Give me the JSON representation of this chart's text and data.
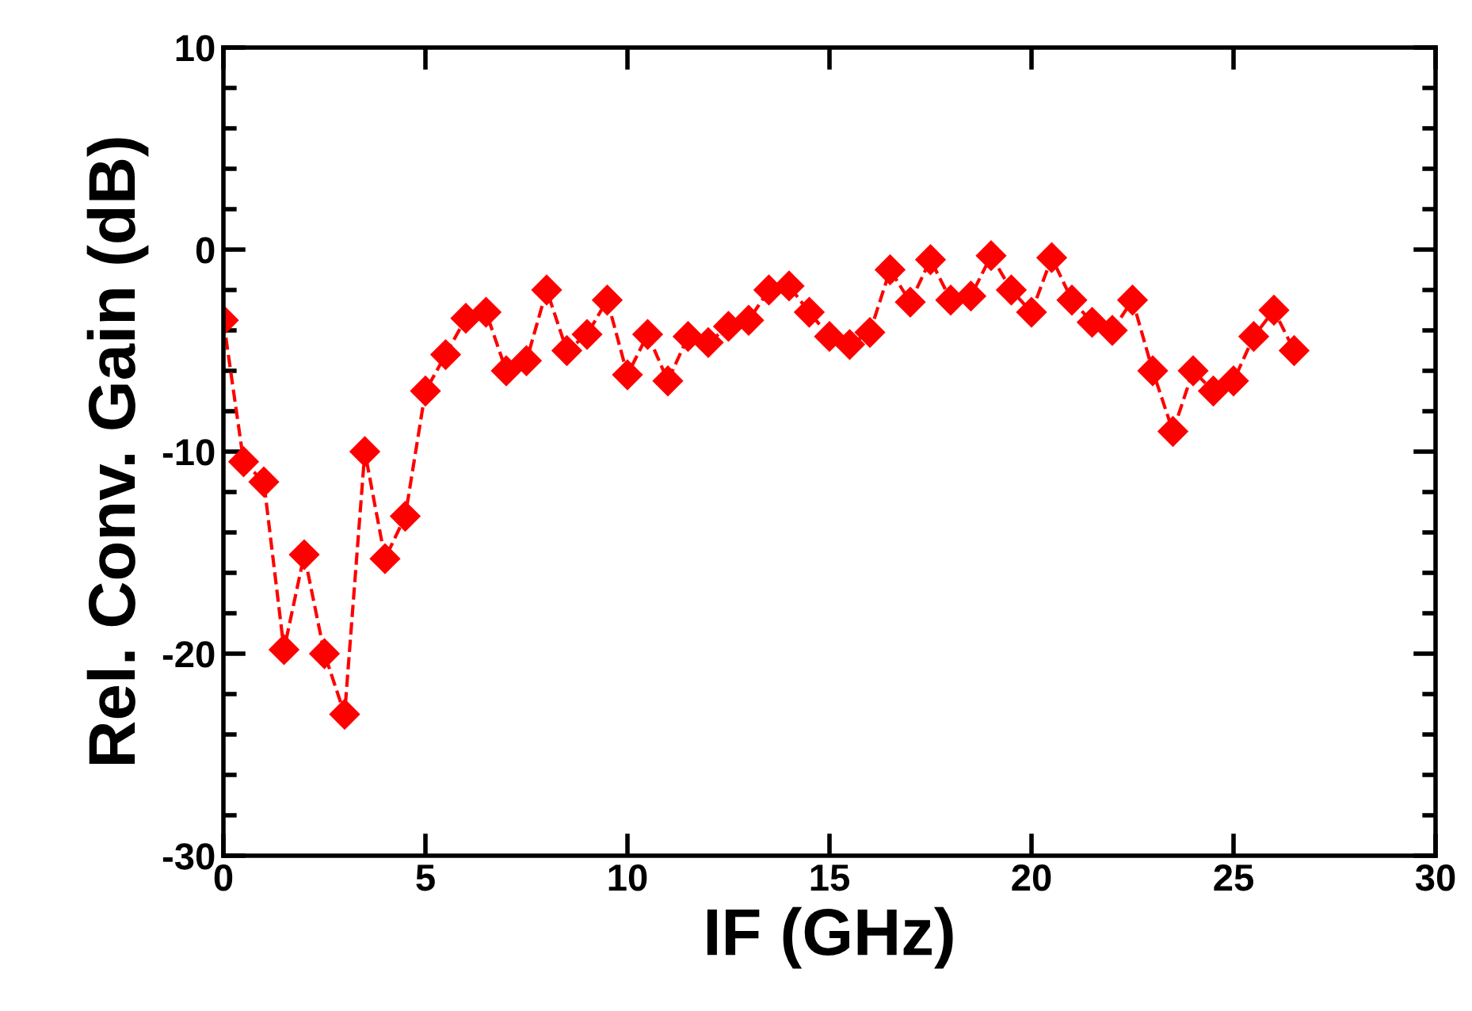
{
  "chart_data": {
    "type": "line",
    "xlabel": "IF (GHz)",
    "ylabel": "Rel. Conv. Gain (dB)",
    "xlim": [
      0,
      30
    ],
    "xticks": [
      0,
      5,
      10,
      15,
      20,
      25,
      30
    ],
    "ylim": [
      -30,
      10
    ],
    "yticks": [
      -30,
      -20,
      -10,
      0,
      10
    ],
    "grid": false,
    "legend": false,
    "marker": "diamond",
    "line_style": "dashed",
    "x": [
      0,
      0.5,
      1,
      1.5,
      2,
      2.5,
      3,
      3.5,
      4,
      4.5,
      5,
      5.5,
      6,
      6.5,
      7,
      7.5,
      8,
      8.5,
      9,
      9.5,
      10,
      10.5,
      11,
      11.5,
      12,
      12.5,
      13,
      13.5,
      14,
      14.5,
      15,
      15.5,
      16,
      16.5,
      17,
      17.5,
      18,
      18.5,
      19,
      19.5,
      20,
      20.5,
      21,
      21.5,
      22,
      22.5,
      23,
      23.5,
      24,
      24.5,
      25,
      25.5,
      26,
      26.5
    ],
    "series": [
      {
        "color": "#ff0000",
        "values": [
          -3.5,
          -10.5,
          -11.5,
          -19.8,
          -15.1,
          -20,
          -23,
          -10,
          -15.3,
          -13.2,
          -7,
          -5.2,
          -3.4,
          -3.1,
          -6,
          -5.5,
          -2,
          -5,
          -4.2,
          -2.5,
          -6.2,
          -4.2,
          -6.5,
          -4.3,
          -4.6,
          -3.8,
          -3.5,
          -2,
          -1.8,
          -3.1,
          -4.3,
          -4.7,
          -4.1,
          -1,
          -2.6,
          -0.5,
          -2.5,
          -2.3,
          -0.3,
          -2,
          -3.1,
          -0.4,
          -2.5,
          -3.6,
          -4,
          -2.5,
          -6,
          -9,
          -6,
          -7,
          -6.5,
          -4.3,
          -3,
          -5
        ]
      }
    ]
  }
}
